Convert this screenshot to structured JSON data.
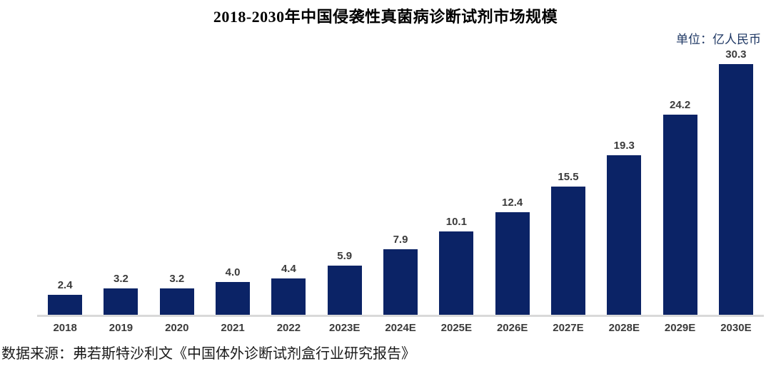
{
  "title": "2018-2030年中国侵袭性真菌病诊断试剂市场规模",
  "unit_label": "单位：亿人民币",
  "source": "数据来源：弗若斯特沙利文《中国体外诊断试剂盒行业研究报告》",
  "colors": {
    "bar": "#0B2366",
    "axis_line": "#D9D9D9",
    "value_label": "#3B3B3B",
    "tick_label": "#3B3B3B",
    "unit_label": "#1F3864",
    "title": "#000000",
    "background": "#FFFFFF"
  },
  "chart_data": {
    "type": "bar",
    "title": "2018-2030年中国侵袭性真菌病诊断试剂市场规模",
    "subtitle": "单位：亿人民币",
    "categories": [
      "2018",
      "2019",
      "2020",
      "2021",
      "2022",
      "2023E",
      "2024E",
      "2025E",
      "2026E",
      "2027E",
      "2028E",
      "2029E",
      "2030E"
    ],
    "values": [
      2.4,
      3.2,
      3.2,
      4.0,
      4.4,
      5.9,
      7.9,
      10.1,
      12.4,
      15.5,
      19.3,
      24.2,
      30.3
    ],
    "xlabel": "",
    "ylabel": "",
    "ylim": [
      0,
      32
    ],
    "grid": false,
    "legend": false,
    "y_axis_visible": false,
    "value_labels_shown": true,
    "bar_color": "#0B2366",
    "source_note": "数据来源：弗若斯特沙利文《中国体外诊断试剂盒行业研究报告》"
  }
}
